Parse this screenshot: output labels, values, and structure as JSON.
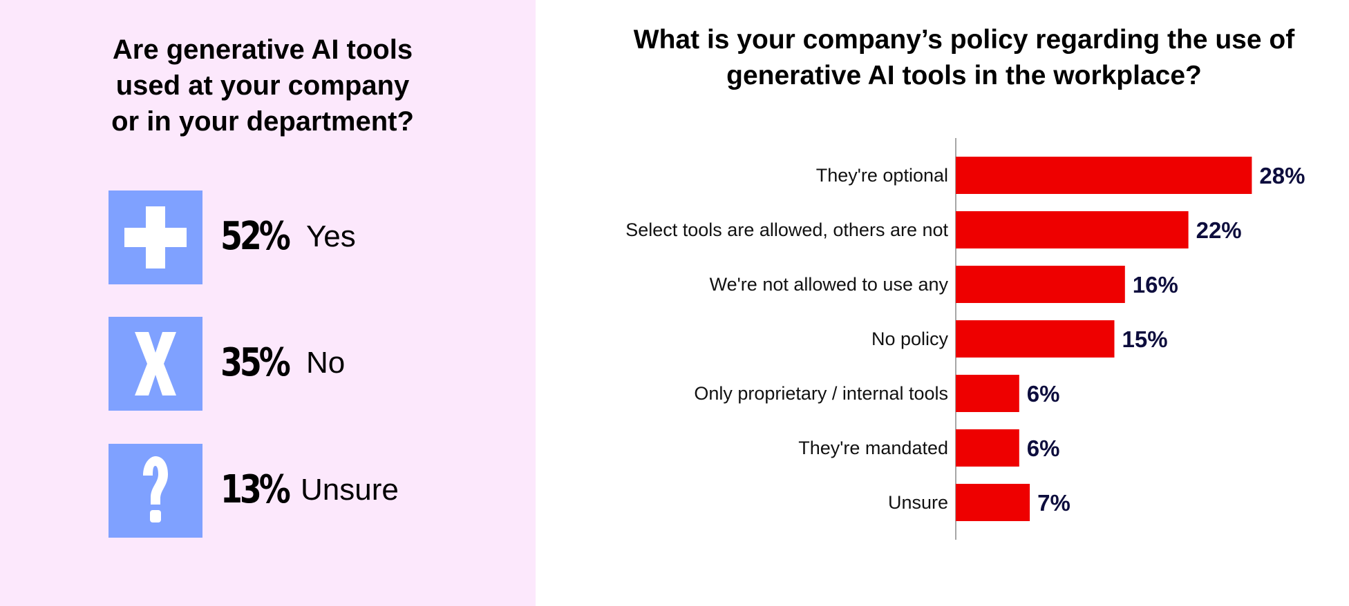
{
  "left": {
    "title_lines": [
      "Are generative AI tools",
      "used at your company",
      "or in your department?"
    ],
    "icon_color": "#7fa1ff",
    "stats": [
      {
        "icon": "plus-icon",
        "value": 52,
        "percent_text": "52%",
        "label": "Yes"
      },
      {
        "icon": "x-icon",
        "value": 35,
        "percent_text": "35%",
        "label": "No"
      },
      {
        "icon": "question-icon",
        "value": 13,
        "percent_text": "13%",
        "label": "Unsure"
      }
    ]
  },
  "right": {
    "title_lines": [
      "What is your company’s policy regarding the use of",
      "generative AI tools in the workplace?"
    ]
  },
  "chart_data": {
    "type": "bar",
    "orientation": "horizontal",
    "title": "What is your company’s policy regarding the use of generative AI tools in the workplace?",
    "categories": [
      "They're optional",
      "Select tools are allowed, others are not",
      "We're not allowed to use any",
      "No policy",
      "Only proprietary / internal tools",
      "They're mandated",
      "Unsure"
    ],
    "values": [
      28,
      22,
      16,
      15,
      6,
      6,
      7
    ],
    "value_labels": [
      "28%",
      "22%",
      "16%",
      "15%",
      "6%",
      "6%",
      "7%"
    ],
    "unit": "%",
    "bar_color": "#ee0000",
    "value_label_color": "#0d0d3d",
    "grid": false,
    "legend": "none"
  },
  "colors": {
    "left_background": "#fce8fc",
    "right_background": "#ffffff"
  }
}
